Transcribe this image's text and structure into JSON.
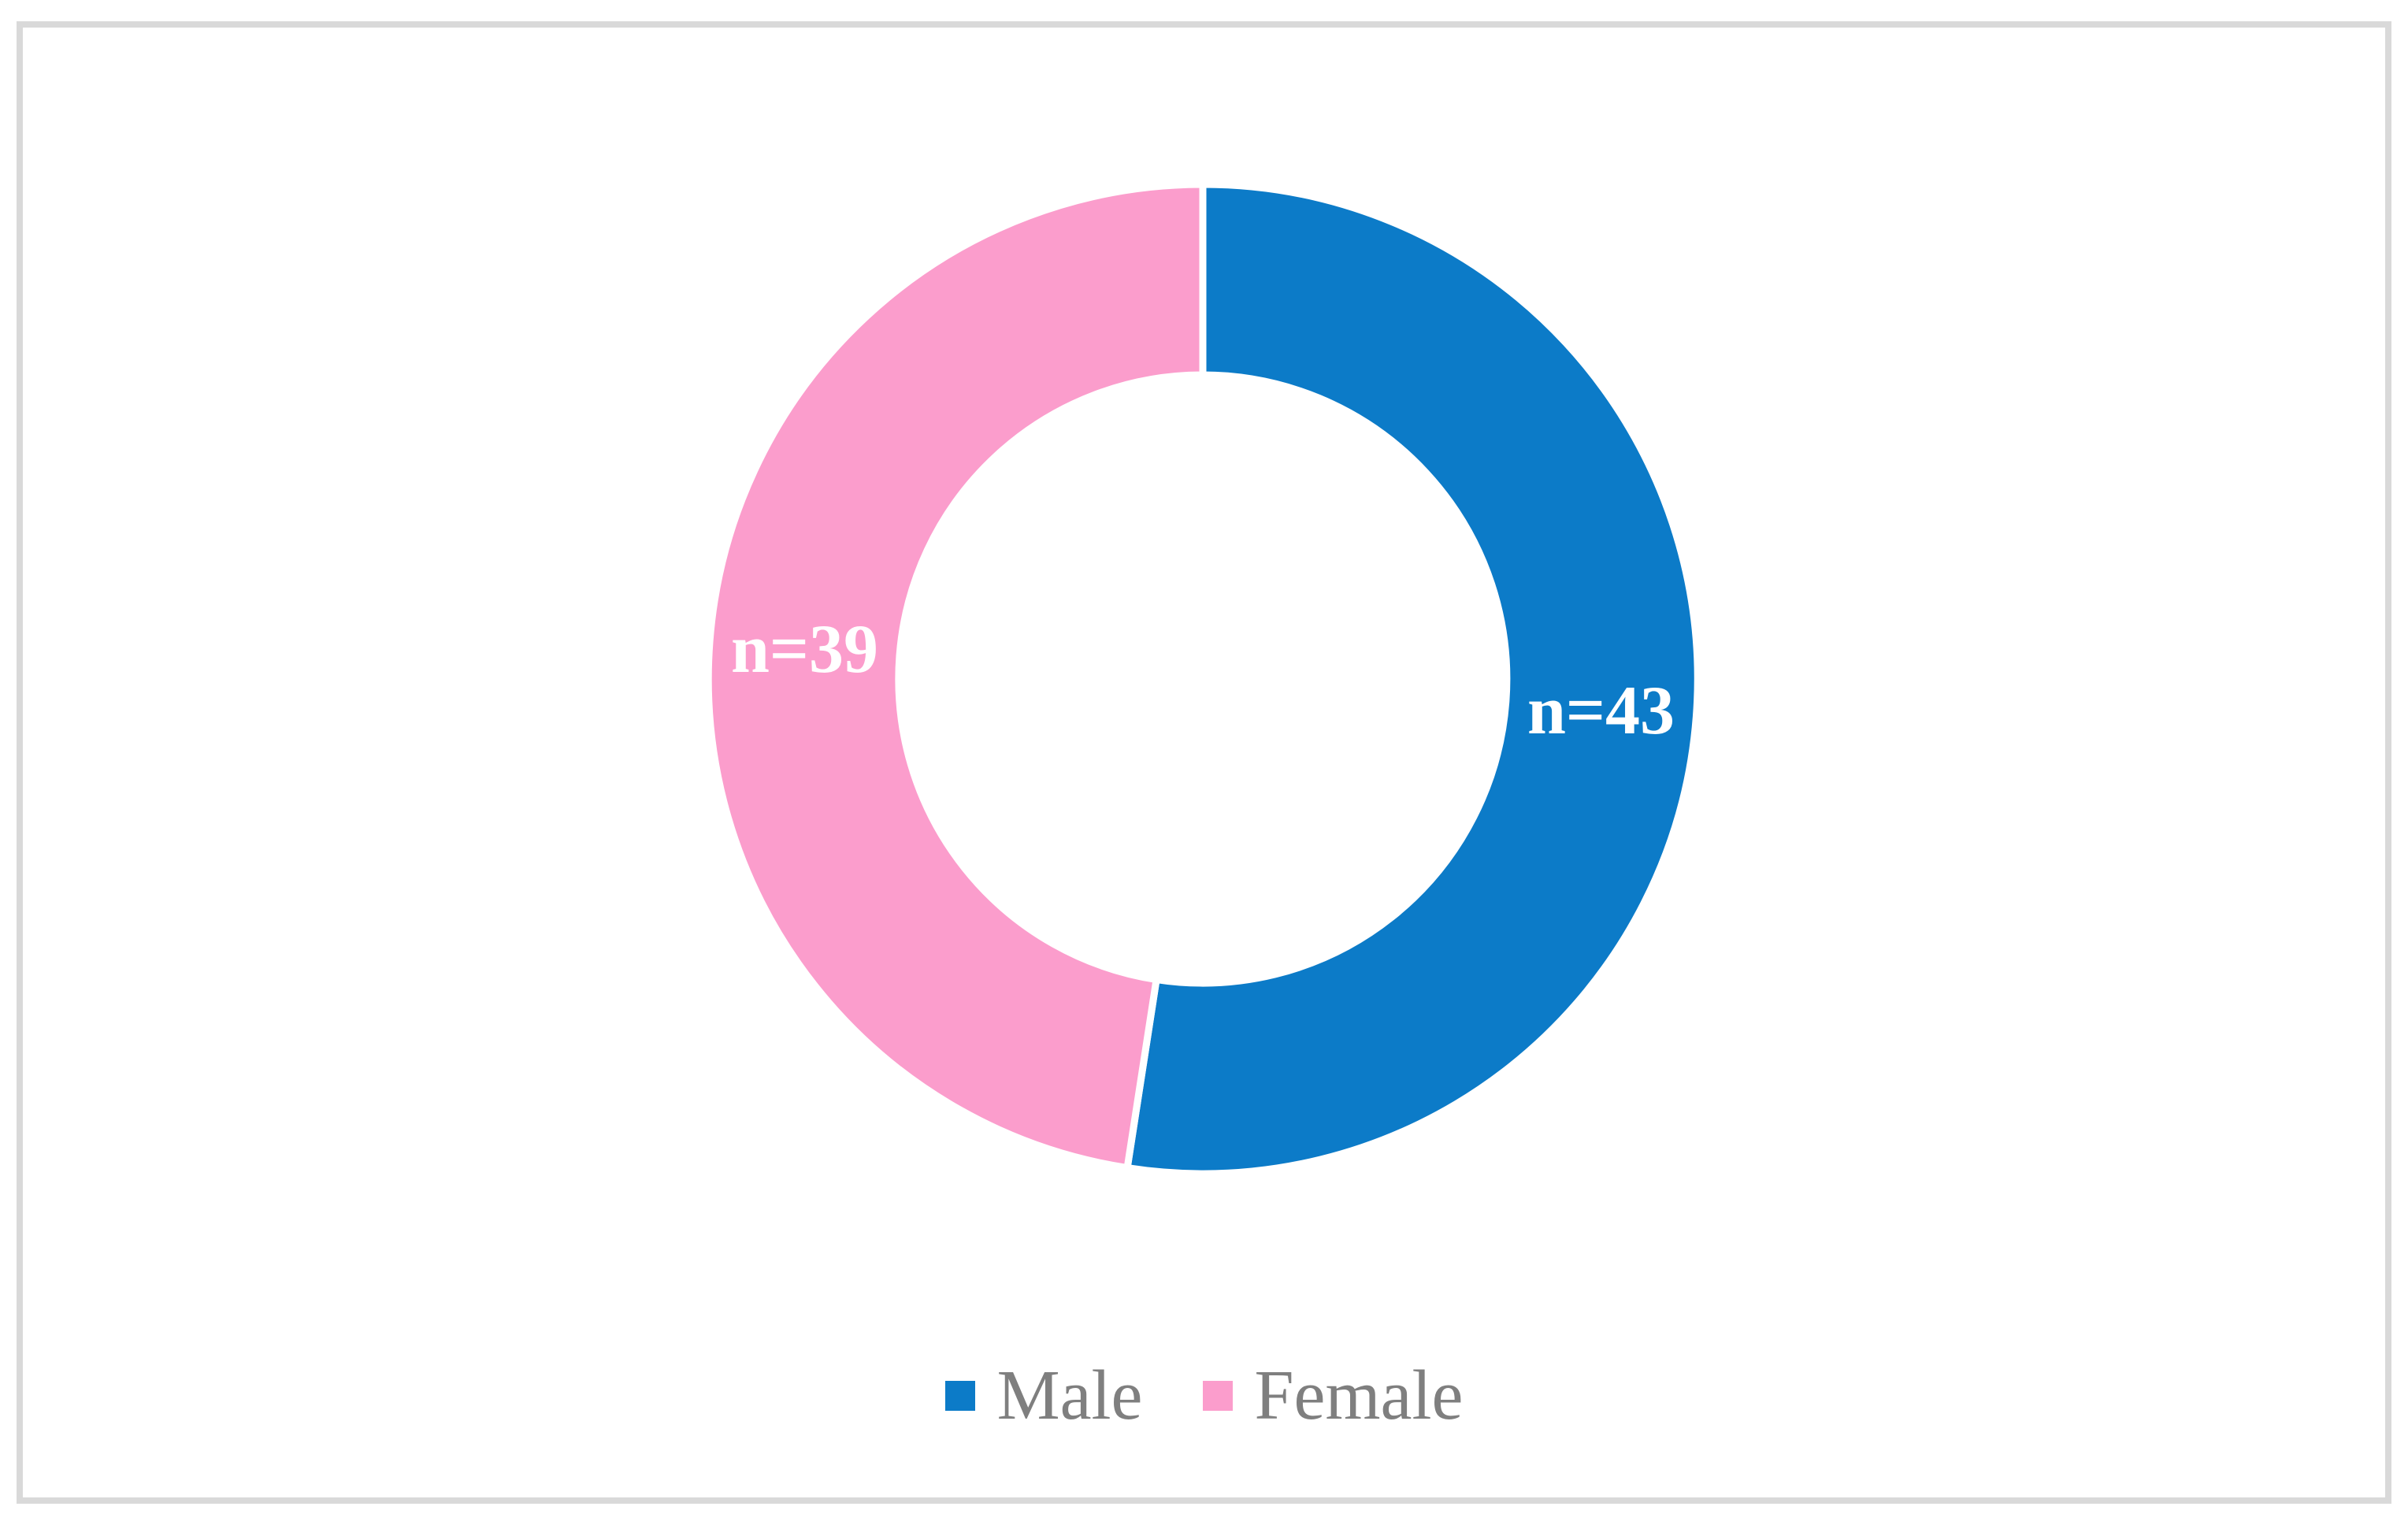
{
  "figure": {
    "background": "#ffffff",
    "frame_border_color": "#d9d9d9"
  },
  "chart_data": {
    "type": "pie",
    "subtype": "doughnut",
    "title": "",
    "categories": [
      "Male",
      "Female"
    ],
    "values": [
      43,
      39
    ],
    "labels": [
      "n=43",
      "n=39"
    ],
    "colors": [
      "#0c7bc8",
      "#fb9dcc"
    ],
    "label_color": "#ffffff",
    "slice_border_color": "#ffffff",
    "start_angle_deg": 0,
    "direction": "clockwise",
    "hole_ratio": 0.615,
    "legend": {
      "position": "bottom",
      "text_color": "#7f7f7f"
    }
  }
}
